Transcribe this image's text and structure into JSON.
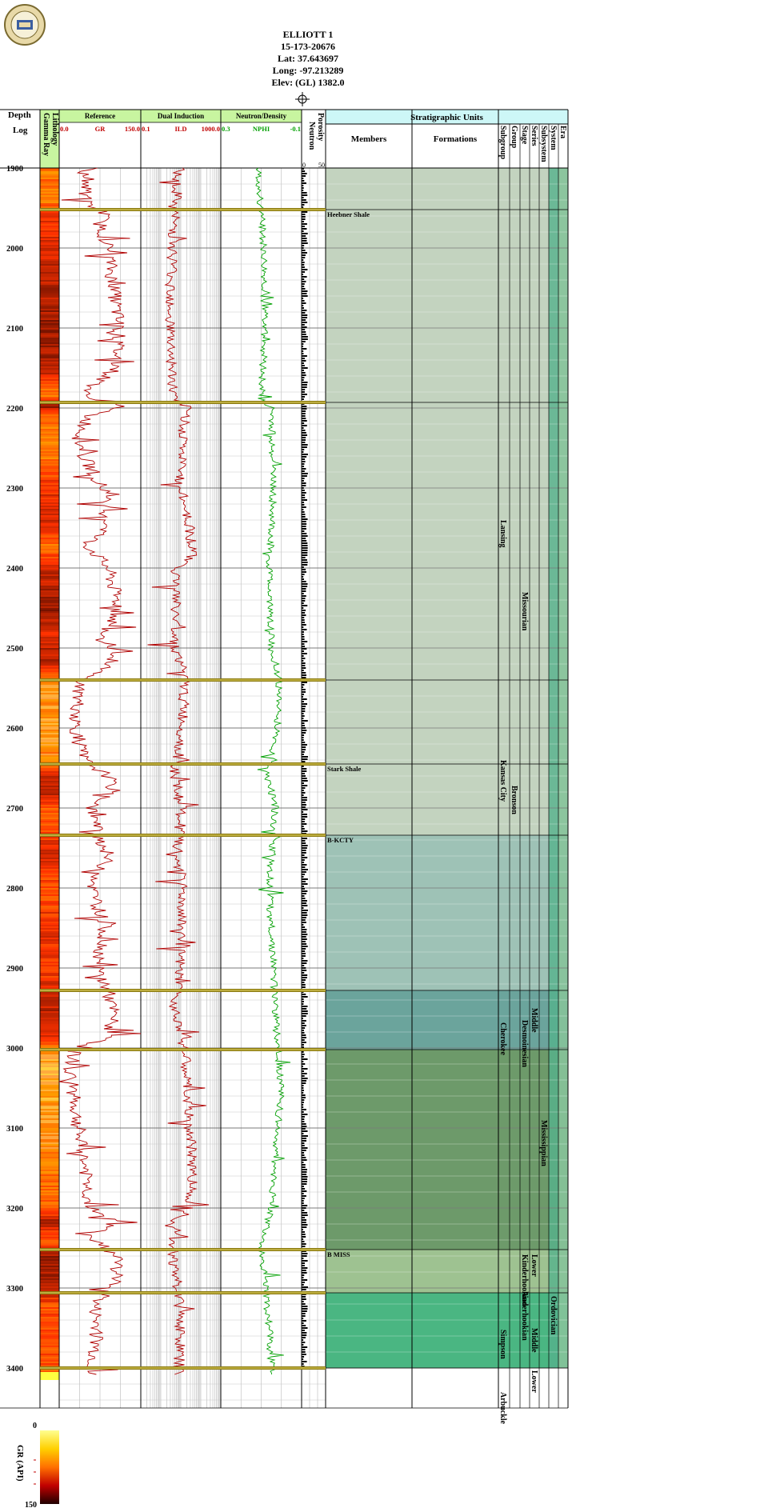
{
  "well": {
    "name": "ELLIOTT 1",
    "api": "15-173-20676",
    "lat": "Lat: 37.643697",
    "long": "Long: -97.213289",
    "elev": "Elev: (GL) 1382.0"
  },
  "columns": {
    "depth_title": "Depth",
    "log_title": "Log",
    "lithology": "Lithology",
    "gamma_ray": "Gamma Ray",
    "reference": "Reference",
    "gr_left": "0.0",
    "gr_name": "GR",
    "gr_right": "150.0",
    "dual_induction": "Dual Induction",
    "ild_left": "0.1",
    "ild_name": "ILD",
    "ild_right": "1000.0",
    "neutron_density": "Neutron/Density",
    "nphi_left": "0.3",
    "nphi_name": "NPHI",
    "nphi_right": "-0.1",
    "porosity": "Porosity",
    "neutron": "Neutron",
    "por_left": "0",
    "por_right": "50",
    "strat_title": "Stratigraphic Units",
    "members": "Members",
    "formations": "Formations",
    "hierarchy": [
      "Subgroup",
      "Group",
      "Stage",
      "Series",
      "Subsystem",
      "System",
      "Era"
    ]
  },
  "legend": {
    "label": "GR (API)",
    "min": "0",
    "max": "150"
  },
  "chart_data": {
    "type": "line",
    "depth_range": [
      1900,
      3450
    ],
    "depth_ticks": [
      1900,
      2000,
      2100,
      2200,
      2300,
      2400,
      2500,
      2600,
      2700,
      2800,
      2900,
      3000,
      3100,
      3200,
      3300,
      3400
    ],
    "depth_tick_labels": [
      "1900",
      "2000",
      "2100",
      "2200",
      "2300",
      "2400",
      "2500",
      "2600",
      "2700",
      "2800",
      "2900",
      "3000",
      "3100",
      "3200",
      "3300",
      "3400"
    ],
    "tracks": [
      {
        "name": "GR",
        "range": [
          0,
          150
        ],
        "scale": "linear",
        "color": "#b00000"
      },
      {
        "name": "ILD",
        "range": [
          0.1,
          1000
        ],
        "scale": "log",
        "color": "#b00000"
      },
      {
        "name": "NPHI",
        "range": [
          0.3,
          -0.1
        ],
        "scale": "linear",
        "color": "#00a000"
      }
    ],
    "gr_profile": [
      [
        1900,
        60
      ],
      [
        1905,
        40
      ],
      [
        1915,
        55
      ],
      [
        1930,
        45
      ],
      [
        1945,
        50
      ],
      [
        1955,
        85
      ],
      [
        1970,
        75
      ],
      [
        2000,
        90
      ],
      [
        2050,
        100
      ],
      [
        2100,
        110
      ],
      [
        2150,
        105
      ],
      [
        2185,
        40
      ],
      [
        2195,
        120
      ],
      [
        2210,
        55
      ],
      [
        2240,
        35
      ],
      [
        2260,
        45
      ],
      [
        2300,
        80
      ],
      [
        2350,
        90
      ],
      [
        2370,
        50
      ],
      [
        2400,
        90
      ],
      [
        2450,
        110
      ],
      [
        2490,
        80
      ],
      [
        2500,
        100
      ],
      [
        2520,
        95
      ],
      [
        2540,
        40
      ],
      [
        2560,
        35
      ],
      [
        2600,
        30
      ],
      [
        2640,
        45
      ],
      [
        2660,
        90
      ],
      [
        2680,
        100
      ],
      [
        2700,
        60
      ],
      [
        2730,
        70
      ],
      [
        2760,
        90
      ],
      [
        2800,
        60
      ],
      [
        2850,
        85
      ],
      [
        2900,
        70
      ],
      [
        2930,
        90
      ],
      [
        2960,
        100
      ],
      [
        2990,
        85
      ],
      [
        3000,
        30
      ],
      [
        3030,
        20
      ],
      [
        3080,
        30
      ],
      [
        3120,
        40
      ],
      [
        3160,
        50
      ],
      [
        3200,
        55
      ],
      [
        3215,
        100
      ],
      [
        3240,
        60
      ],
      [
        3260,
        110
      ],
      [
        3300,
        100
      ],
      [
        3320,
        65
      ],
      [
        3360,
        70
      ],
      [
        3400,
        60
      ]
    ],
    "ild_profile": [
      [
        1900,
        8
      ],
      [
        1950,
        5
      ],
      [
        2000,
        4
      ],
      [
        2100,
        3
      ],
      [
        2190,
        4
      ],
      [
        2200,
        20
      ],
      [
        2250,
        12
      ],
      [
        2300,
        8
      ],
      [
        2380,
        40
      ],
      [
        2400,
        6
      ],
      [
        2500,
        5
      ],
      [
        2540,
        15
      ],
      [
        2600,
        12
      ],
      [
        2660,
        4
      ],
      [
        2700,
        10
      ],
      [
        2760,
        6
      ],
      [
        2800,
        12
      ],
      [
        2900,
        8
      ],
      [
        2950,
        5
      ],
      [
        3000,
        15
      ],
      [
        3100,
        25
      ],
      [
        3150,
        40
      ],
      [
        3200,
        30
      ],
      [
        3215,
        6
      ],
      [
        3260,
        4
      ],
      [
        3300,
        6
      ],
      [
        3330,
        10
      ],
      [
        3400,
        8
      ]
    ],
    "nphi_profile": [
      [
        1900,
        0.12
      ],
      [
        1950,
        0.1
      ],
      [
        2000,
        0.09
      ],
      [
        2100,
        0.08
      ],
      [
        2190,
        0.1
      ],
      [
        2200,
        0.05
      ],
      [
        2300,
        0.04
      ],
      [
        2400,
        0.06
      ],
      [
        2500,
        0.05
      ],
      [
        2540,
        0.01
      ],
      [
        2600,
        0.02
      ],
      [
        2660,
        0.07
      ],
      [
        2700,
        0.03
      ],
      [
        2800,
        0.06
      ],
      [
        2900,
        0.04
      ],
      [
        3000,
        0.02
      ],
      [
        3050,
        0.0
      ],
      [
        3100,
        0.02
      ],
      [
        3200,
        0.05
      ],
      [
        3250,
        0.1
      ],
      [
        3300,
        0.08
      ],
      [
        3350,
        0.06
      ],
      [
        3400,
        0.05
      ]
    ],
    "tops": [
      {
        "name": "Heebner Shale",
        "depth": 1952
      },
      {
        "name": "",
        "depth": 2193
      },
      {
        "name": "",
        "depth": 2540
      },
      {
        "name": "Stark Shale",
        "depth": 2645
      },
      {
        "name": "B-KCTY",
        "depth": 2734
      },
      {
        "name": "",
        "depth": 2928
      },
      {
        "name": "",
        "depth": 3002
      },
      {
        "name": "B MISS",
        "depth": 3252
      },
      {
        "name": "",
        "depth": 3306
      },
      {
        "name": "",
        "depth": 3400
      }
    ],
    "strat_bands": [
      {
        "from": 1900,
        "to": 2734,
        "color": "#c3d3bf"
      },
      {
        "from": 2734,
        "to": 2928,
        "color": "#9ec2b6"
      },
      {
        "from": 2928,
        "to": 3002,
        "color": "#6ba49c"
      },
      {
        "from": 3002,
        "to": 3252,
        "color": "#6d9a6a"
      },
      {
        "from": 3252,
        "to": 3306,
        "color": "#9ec291"
      },
      {
        "from": 3306,
        "to": 3400,
        "color": "#4ab682"
      }
    ],
    "strat_labels": [
      {
        "column": "Subgroup",
        "text": "Lansing",
        "depth": 2340
      },
      {
        "column": "Subgroup",
        "text": "Kansas City",
        "depth": 2640
      },
      {
        "column": "Subgroup",
        "text": "Cherokee",
        "depth": 2968
      },
      {
        "column": "Subgroup",
        "text": "Simpson",
        "depth": 3352
      },
      {
        "column": "Subgroup",
        "text": "Arbuckle",
        "depth": 3430
      },
      {
        "column": "Group",
        "text": "Bronson",
        "depth": 2672
      },
      {
        "column": "Stage",
        "text": "Missourian",
        "depth": 2430
      },
      {
        "column": "Stage",
        "text": "Desmoinesian",
        "depth": 2965
      },
      {
        "column": "Stage",
        "text": "Kinderhookian",
        "depth": 3258
      },
      {
        "column": "Stage",
        "text": "Anderhookian",
        "depth": 3304
      },
      {
        "column": "Series",
        "text": "Middle",
        "depth": 2950
      },
      {
        "column": "Series",
        "text": "Lower",
        "depth": 3258
      },
      {
        "column": "Series",
        "text": "Middle",
        "depth": 3350
      },
      {
        "column": "Series",
        "text": "Lower",
        "depth": 3403
      },
      {
        "column": "Subsystem",
        "text": "Mississippian",
        "depth": 3090
      },
      {
        "column": "System",
        "text": "Ordovician",
        "depth": 3310
      }
    ]
  }
}
